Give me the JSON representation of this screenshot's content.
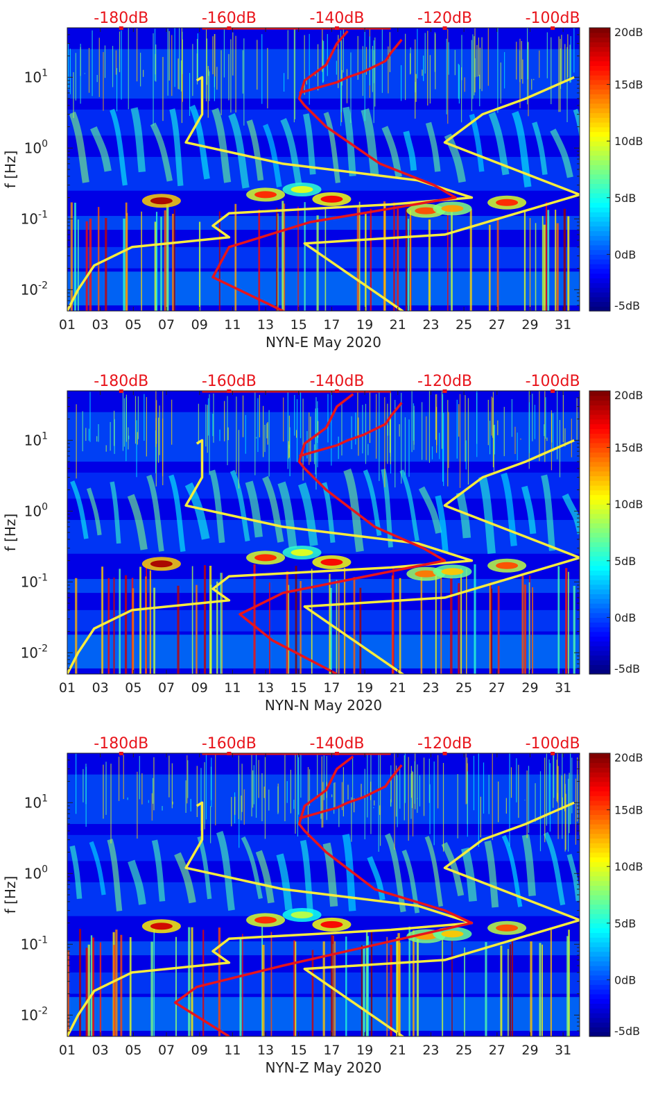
{
  "chart_data": [
    {
      "type": "heatmap",
      "xlabel": "NYN-E May 2020",
      "ylabel": "f [Hz]",
      "x_ticks": [
        "01",
        "03",
        "05",
        "07",
        "09",
        "11",
        "13",
        "15",
        "17",
        "19",
        "21",
        "23",
        "25",
        "27",
        "29",
        "31"
      ],
      "x_range_days": [
        1,
        32
      ],
      "y_scale": "log",
      "y_range_hz": [
        0.005,
        50
      ],
      "y_ticks": [
        {
          "base": "10",
          "exp": "1",
          "value": 10
        },
        {
          "base": "10",
          "exp": "0",
          "value": 1
        },
        {
          "base": "10",
          "exp": "-1",
          "value": 0.1
        },
        {
          "base": "10",
          "exp": "-2",
          "value": 0.01
        }
      ],
      "colorbar": {
        "ticks": [
          "20dB",
          "15dB",
          "10dB",
          "5dB",
          "0dB",
          "-5dB"
        ],
        "range_db": [
          -5,
          20
        ],
        "colormap": "jet"
      },
      "top_axis": {
        "color": "#e8141b",
        "ticks": [
          "-180dB",
          "-160dB",
          "-140dB",
          "-120dB",
          "-100dB"
        ],
        "range_db": [
          -190,
          -95
        ],
        "tick_values": [
          -180,
          -160,
          -140,
          -120,
          -100
        ]
      },
      "bright_bands": [
        {
          "day": 6.7,
          "f": 0.18,
          "db": 19
        },
        {
          "day": 13.0,
          "f": 0.22,
          "db": 16
        },
        {
          "day": 15.2,
          "f": 0.26,
          "db": 10
        },
        {
          "day": 17.0,
          "f": 0.19,
          "db": 17
        },
        {
          "day": 22.7,
          "f": 0.13,
          "db": 15
        },
        {
          "day": 24.3,
          "f": 0.14,
          "db": 13
        },
        {
          "day": 27.6,
          "f": 0.17,
          "db": 16
        }
      ],
      "series": [
        {
          "name": "",
          "color": "#f7ec3d",
          "points": [
            [
              -190,
              0.005
            ],
            [
              -188,
              0.01
            ],
            [
              -185,
              0.022
            ],
            [
              -178,
              0.04
            ],
            [
              -160,
              0.055
            ],
            [
              -163,
              0.08
            ],
            [
              -160,
              0.12
            ],
            [
              -130,
              0.16
            ],
            [
              -115,
              0.2
            ],
            [
              -125,
              0.35
            ],
            [
              -150,
              0.6
            ],
            [
              -168,
              1.2
            ],
            [
              -165,
              3
            ],
            [
              -165,
              10
            ],
            [
              -166,
              9
            ]
          ]
        },
        {
          "name": "",
          "color": "#f7ec3d",
          "points": [
            [
              -126,
              0.004
            ],
            [
              -146,
              0.045
            ],
            [
              -120,
              0.06
            ],
            [
              -95,
              0.22
            ],
            [
              -120,
              1.2
            ],
            [
              -113,
              3
            ],
            [
              -105,
              5
            ],
            [
              -96,
              10
            ]
          ]
        },
        {
          "name": "",
          "color": "#e8141b",
          "points": [
            [
              -150,
              0.005
            ],
            [
              -163,
              0.015
            ],
            [
              -160,
              0.04
            ],
            [
              -145,
              0.09
            ],
            [
              -118,
              0.2
            ],
            [
              -122,
              0.3
            ],
            [
              -132,
              0.6
            ],
            [
              -142,
              2
            ],
            [
              -146,
              4
            ],
            [
              -147,
              5
            ],
            [
              -146,
              9
            ],
            [
              -142,
              15
            ],
            [
              -140,
              30
            ],
            [
              -138,
              45
            ]
          ]
        },
        {
          "name": "",
          "color": "#e8141b",
          "points": [
            [
              -147,
              6
            ],
            [
              -140,
              8.5
            ],
            [
              -138,
              10
            ],
            [
              -135,
              12
            ],
            [
              -131,
              17
            ],
            [
              -130,
              22
            ],
            [
              -128,
              34
            ]
          ]
        }
      ]
    },
    {
      "type": "heatmap",
      "xlabel": "NYN-N May 2020",
      "ylabel": "f [Hz]",
      "x_ticks": [
        "01",
        "03",
        "05",
        "07",
        "09",
        "11",
        "13",
        "15",
        "17",
        "19",
        "21",
        "23",
        "25",
        "27",
        "29",
        "31"
      ],
      "x_range_days": [
        1,
        32
      ],
      "y_scale": "log",
      "y_range_hz": [
        0.005,
        50
      ],
      "y_ticks": [
        {
          "base": "10",
          "exp": "1",
          "value": 10
        },
        {
          "base": "10",
          "exp": "0",
          "value": 1
        },
        {
          "base": "10",
          "exp": "-1",
          "value": 0.1
        },
        {
          "base": "10",
          "exp": "-2",
          "value": 0.01
        }
      ],
      "colorbar": {
        "ticks": [
          "20dB",
          "15dB",
          "10dB",
          "5dB",
          "0dB",
          "-5dB"
        ],
        "range_db": [
          -5,
          20
        ],
        "colormap": "jet"
      },
      "top_axis": {
        "color": "#e8141b",
        "ticks": [
          "-180dB",
          "-160dB",
          "-140dB",
          "-120dB",
          "-100dB"
        ],
        "range_db": [
          -190,
          -95
        ],
        "tick_values": [
          -180,
          -160,
          -140,
          -120,
          -100
        ]
      },
      "bright_bands": [
        {
          "day": 6.7,
          "f": 0.18,
          "db": 19
        },
        {
          "day": 13.0,
          "f": 0.22,
          "db": 16
        },
        {
          "day": 15.2,
          "f": 0.26,
          "db": 10
        },
        {
          "day": 17.0,
          "f": 0.19,
          "db": 17
        },
        {
          "day": 22.7,
          "f": 0.13,
          "db": 14
        },
        {
          "day": 24.3,
          "f": 0.14,
          "db": 12
        },
        {
          "day": 27.6,
          "f": 0.17,
          "db": 15
        }
      ],
      "series": [
        {
          "name": "",
          "color": "#f7ec3d",
          "points": [
            [
              -190,
              0.005
            ],
            [
              -188,
              0.01
            ],
            [
              -185,
              0.022
            ],
            [
              -178,
              0.04
            ],
            [
              -160,
              0.055
            ],
            [
              -163,
              0.08
            ],
            [
              -160,
              0.12
            ],
            [
              -130,
              0.16
            ],
            [
              -115,
              0.2
            ],
            [
              -125,
              0.35
            ],
            [
              -150,
              0.6
            ],
            [
              -168,
              1.2
            ],
            [
              -165,
              3
            ],
            [
              -165,
              10
            ],
            [
              -166,
              9
            ]
          ]
        },
        {
          "name": "",
          "color": "#f7ec3d",
          "points": [
            [
              -126,
              0.004
            ],
            [
              -146,
              0.045
            ],
            [
              -120,
              0.06
            ],
            [
              -95,
              0.22
            ],
            [
              -120,
              1.2
            ],
            [
              -113,
              3
            ],
            [
              -105,
              5
            ],
            [
              -96,
              10
            ]
          ]
        },
        {
          "name": "",
          "color": "#e8141b",
          "points": [
            [
              -140,
              0.005
            ],
            [
              -152,
              0.015
            ],
            [
              -158,
              0.035
            ],
            [
              -150,
              0.07
            ],
            [
              -120,
              0.2
            ],
            [
              -124,
              0.3
            ],
            [
              -133,
              0.6
            ],
            [
              -142,
              2
            ],
            [
              -146,
              4
            ],
            [
              -147,
              5
            ],
            [
              -146,
              9
            ],
            [
              -142,
              15
            ],
            [
              -140,
              30
            ],
            [
              -137,
              45
            ]
          ]
        },
        {
          "name": "",
          "color": "#e8141b",
          "points": [
            [
              -147,
              6
            ],
            [
              -140,
              8.5
            ],
            [
              -138,
              10
            ],
            [
              -135,
              12
            ],
            [
              -131,
              17
            ],
            [
              -130,
              22
            ],
            [
              -128,
              34
            ]
          ]
        }
      ]
    },
    {
      "type": "heatmap",
      "xlabel": "NYN-Z May 2020",
      "ylabel": "f [Hz]",
      "x_ticks": [
        "01",
        "03",
        "05",
        "07",
        "09",
        "11",
        "13",
        "15",
        "17",
        "19",
        "21",
        "23",
        "25",
        "27",
        "29",
        "31"
      ],
      "x_range_days": [
        1,
        32
      ],
      "y_scale": "log",
      "y_range_hz": [
        0.005,
        50
      ],
      "y_ticks": [
        {
          "base": "10",
          "exp": "1",
          "value": 10
        },
        {
          "base": "10",
          "exp": "0",
          "value": 1
        },
        {
          "base": "10",
          "exp": "-1",
          "value": 0.1
        },
        {
          "base": "10",
          "exp": "-2",
          "value": 0.01
        }
      ],
      "colorbar": {
        "ticks": [
          "20dB",
          "15dB",
          "10dB",
          "5dB",
          "0dB",
          "-5dB"
        ],
        "range_db": [
          -5,
          20
        ],
        "colormap": "jet"
      },
      "top_axis": {
        "color": "#e8141b",
        "ticks": [
          "-180dB",
          "-160dB",
          "-140dB",
          "-120dB",
          "-100dB"
        ],
        "range_db": [
          -190,
          -95
        ],
        "tick_values": [
          -180,
          -160,
          -140,
          -120,
          -100
        ]
      },
      "bright_bands": [
        {
          "day": 6.7,
          "f": 0.18,
          "db": 18
        },
        {
          "day": 13.0,
          "f": 0.22,
          "db": 16
        },
        {
          "day": 15.2,
          "f": 0.26,
          "db": 9
        },
        {
          "day": 17.0,
          "f": 0.19,
          "db": 17
        },
        {
          "day": 22.7,
          "f": 0.13,
          "db": 13
        },
        {
          "day": 24.3,
          "f": 0.14,
          "db": 12
        },
        {
          "day": 27.6,
          "f": 0.17,
          "db": 15
        }
      ],
      "series": [
        {
          "name": "",
          "color": "#f7ec3d",
          "points": [
            [
              -190,
              0.005
            ],
            [
              -188,
              0.01
            ],
            [
              -185,
              0.022
            ],
            [
              -178,
              0.04
            ],
            [
              -160,
              0.055
            ],
            [
              -163,
              0.08
            ],
            [
              -160,
              0.12
            ],
            [
              -130,
              0.16
            ],
            [
              -115,
              0.2
            ],
            [
              -125,
              0.35
            ],
            [
              -150,
              0.6
            ],
            [
              -168,
              1.2
            ],
            [
              -165,
              3
            ],
            [
              -165,
              10
            ],
            [
              -166,
              9
            ]
          ]
        },
        {
          "name": "",
          "color": "#f7ec3d",
          "points": [
            [
              -126,
              0.004
            ],
            [
              -146,
              0.045
            ],
            [
              -120,
              0.06
            ],
            [
              -95,
              0.22
            ],
            [
              -120,
              1.2
            ],
            [
              -113,
              3
            ],
            [
              -105,
              5
            ],
            [
              -96,
              10
            ]
          ]
        },
        {
          "name": "",
          "color": "#e8141b",
          "points": [
            [
              -160,
              0.005
            ],
            [
              -170,
              0.015
            ],
            [
              -166,
              0.025
            ],
            [
              -150,
              0.05
            ],
            [
              -115,
              0.2
            ],
            [
              -120,
              0.3
            ],
            [
              -133,
              0.6
            ],
            [
              -142,
              2
            ],
            [
              -146,
              4
            ],
            [
              -147,
              5
            ],
            [
              -146,
              9
            ],
            [
              -142,
              15
            ],
            [
              -140,
              30
            ],
            [
              -137,
              45
            ]
          ]
        },
        {
          "name": "",
          "color": "#e8141b",
          "points": [
            [
              -147,
              6
            ],
            [
              -140,
              8.5
            ],
            [
              -138,
              10
            ],
            [
              -135,
              12
            ],
            [
              -131,
              17
            ],
            [
              -130,
              22
            ],
            [
              -128,
              34
            ]
          ]
        }
      ]
    }
  ]
}
